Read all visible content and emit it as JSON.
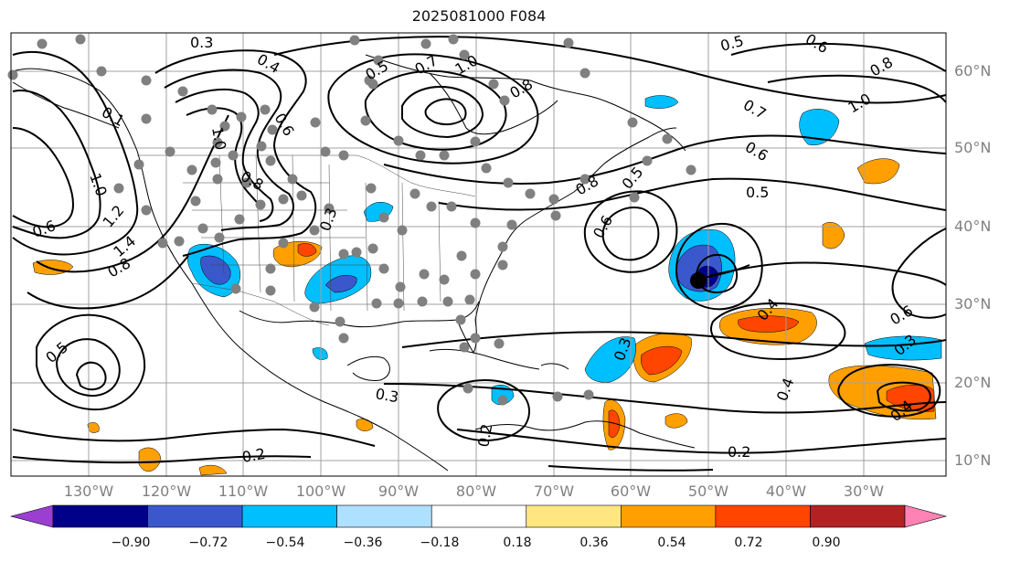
{
  "title": "2025081000 F084",
  "lat_labels": [
    "60°N",
    "50°N",
    "40°N",
    "30°N",
    "20°N",
    "10°N"
  ],
  "lon_labels": [
    "130°W",
    "120°W",
    "110°W",
    "100°W",
    "90°W",
    "80°W",
    "70°W",
    "60°W",
    "50°W",
    "40°W",
    "30°W"
  ],
  "colorbar": {
    "colors": [
      "#9a3fd0",
      "#000088",
      "#3a58cc",
      "#00bfff",
      "#aee0ff",
      "#ffffff",
      "#ffe680",
      "#ffa000",
      "#ff4500",
      "#b22222",
      "#ff82b4"
    ],
    "ticks": [
      "−0.90",
      "−0.72",
      "−0.54",
      "−0.36",
      "−0.18",
      "0.18",
      "0.36",
      "0.54",
      "0.72",
      "0.90"
    ]
  },
  "contour_labels": [
    "0.3",
    "0.4",
    "0.5",
    "0.7",
    "1.0",
    "0.8",
    "0.5",
    "0.6",
    "0.8",
    "0.7",
    "1.0",
    "0.6",
    "0.5",
    "0.6",
    "0.8",
    "0.1",
    "1.0",
    "0.6",
    "1.2",
    "1.4",
    "0.8",
    "0.5",
    "0.2",
    "0.2",
    "0.3",
    "0.2",
    "0.3",
    "0.4",
    "0.6",
    "0.3",
    "0.4",
    "0.4",
    "0.8",
    "1.0",
    "0.3",
    "0.6",
    "0.5"
  ]
}
